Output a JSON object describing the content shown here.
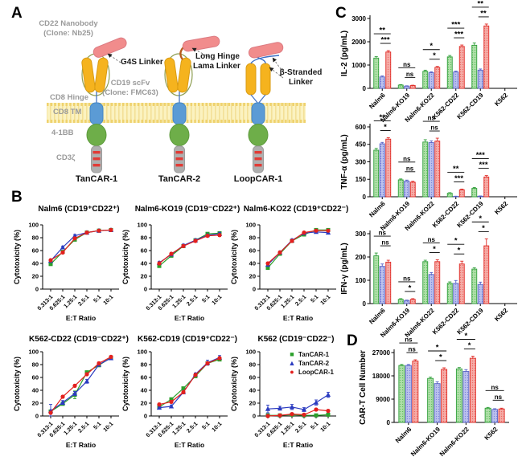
{
  "panels": {
    "a": "A",
    "b": "B",
    "c": "C",
    "d": "D"
  },
  "panelA": {
    "cd22_nanobody_line1": "CD22 Nanobody",
    "cd22_nanobody_line2": "(Clone: Nb25)",
    "g4s_linker": "G4S Linker",
    "cd19_scfv_line1": "CD19 scFv",
    "cd19_scfv_line2": "(Clone: FMC63)",
    "cd8_hinge": "CD8 Hinge",
    "cd8_tm": "CD8 TM",
    "four_1bb": "4-1BB",
    "cd3_zeta": "CD3ζ",
    "long_hinge_line1": "Long Hinge",
    "long_hinge_line2": "Lama Linker",
    "beta_stranded_line1": "β-Stranded",
    "beta_stranded_line2": "Linker",
    "construct_names": [
      "TanCAR-1",
      "TanCAR-2",
      "LoopCAR-1"
    ]
  },
  "series_colors": [
    {
      "name": "TanCAR-1",
      "marker": "square",
      "glyph": "■",
      "line": "#2BA02B",
      "edge": "#2E9E38",
      "fill": "#AFDFA8",
      "dot": "#5FBF5F"
    },
    {
      "name": "TanCAR-2",
      "marker": "triangle",
      "glyph": "▲",
      "line": "#2B3BC0",
      "edge": "#5560C6",
      "fill": "#BBC1ED",
      "dot": "#7A83DB"
    },
    {
      "name": "LoopCAR-1",
      "marker": "circle",
      "glyph": "●",
      "line": "#E3201E",
      "edge": "#E02B26",
      "fill": "#F5ABA6",
      "dot": "#EC6A64"
    }
  ],
  "palette": {
    "nanobody_pink": "#F18C8C",
    "scfv_yellow": "#F5B31E",
    "tm_blue": "#5B9BD5",
    "costim_green": "#6EAE49",
    "cd3_gray": "#AFAFAF",
    "stripe_red": "#E23B36",
    "membrane_yellow": "#F3E097",
    "hinge_blue": "#4472C4",
    "lama_brown": "#B85B1C"
  },
  "chart_data": [
    {
      "id": "b1",
      "type": "line",
      "title": "Nalm6 (CD19⁺CD22⁺)",
      "xlabel": "E:T Ratio",
      "ylabel": "Cytotoxicity (%)",
      "ylim": [
        0,
        100
      ],
      "yticks": [
        0,
        20,
        40,
        60,
        80,
        100
      ],
      "x": [
        "0.313:1",
        "0.625:1",
        "1.25:1",
        "2.5:1",
        "5:1",
        "10:1"
      ],
      "series": [
        {
          "name": "TanCAR-1",
          "values": [
            39,
            58,
            77,
            88,
            91,
            92
          ],
          "err": [
            2,
            2,
            2,
            1,
            1,
            1
          ]
        },
        {
          "name": "TanCAR-2",
          "values": [
            44,
            65,
            83,
            88,
            91,
            92
          ],
          "err": [
            2,
            2,
            2,
            1,
            1,
            1
          ]
        },
        {
          "name": "LoopCAR-1",
          "values": [
            45,
            57,
            79,
            88,
            91,
            92
          ],
          "err": [
            2,
            2,
            2,
            1,
            1,
            1
          ]
        }
      ]
    },
    {
      "id": "b2",
      "type": "line",
      "title": "Nalm6-KO19 (CD19⁻CD22⁺)",
      "xlabel": "E:T Ratio",
      "ylabel": "Cytotoxicity (%)",
      "ylim": [
        0,
        100
      ],
      "yticks": [
        0,
        20,
        40,
        60,
        80,
        100
      ],
      "x": [
        "0.313:1",
        "0.625:1",
        "1.25:1",
        "2.5:1",
        "5:1",
        "10:1"
      ],
      "series": [
        {
          "name": "TanCAR-1",
          "values": [
            36,
            52,
            67,
            76,
            86,
            87
          ],
          "err": [
            2,
            2,
            2,
            2,
            1,
            2
          ]
        },
        {
          "name": "TanCAR-2",
          "values": [
            41,
            54,
            68,
            76,
            84,
            86
          ],
          "err": [
            2,
            2,
            2,
            2,
            1,
            2
          ]
        },
        {
          "name": "LoopCAR-1",
          "values": [
            40,
            55,
            67,
            75,
            83,
            84
          ],
          "err": [
            2,
            2,
            2,
            2,
            1,
            2
          ]
        }
      ]
    },
    {
      "id": "b3",
      "type": "line",
      "title": "Nalm6-KO22 (CD19⁺CD22⁻)",
      "xlabel": "E:T Ratio",
      "ylabel": "Cytotoxicity (%)",
      "ylim": [
        0,
        100
      ],
      "yticks": [
        0,
        20,
        40,
        60,
        80,
        100
      ],
      "x": [
        "0.313:1",
        "0.625:1",
        "1.25:1",
        "2.5:1",
        "5:1",
        "10:1"
      ],
      "series": [
        {
          "name": "TanCAR-1",
          "values": [
            33,
            55,
            75,
            85,
            92,
            92
          ],
          "err": [
            2,
            2,
            2,
            1,
            1,
            1
          ]
        },
        {
          "name": "TanCAR-2",
          "values": [
            38,
            57,
            76,
            87,
            89,
            88
          ],
          "err": [
            2,
            2,
            2,
            1,
            1,
            2
          ]
        },
        {
          "name": "LoopCAR-1",
          "values": [
            40,
            57,
            75,
            88,
            91,
            91
          ],
          "err": [
            2,
            2,
            2,
            1,
            1,
            1
          ]
        }
      ]
    },
    {
      "id": "b4",
      "type": "line",
      "title": "K562-CD22 (CD19⁻CD22⁺)",
      "xlabel": "E:T Ratio",
      "ylabel": "Cytotoxicity (%)",
      "ylim": [
        0,
        100
      ],
      "yticks": [
        0,
        20,
        40,
        60,
        80,
        100
      ],
      "x": [
        "0.313:1",
        "0.625:1",
        "1.25:1",
        "2.5:1",
        "5:1",
        "10:1"
      ],
      "series": [
        {
          "name": "TanCAR-1",
          "values": [
            7,
            19,
            33,
            68,
            79,
            91
          ],
          "err": [
            2,
            2,
            6,
            2,
            2,
            1
          ]
        },
        {
          "name": "TanCAR-2",
          "values": [
            8,
            21,
            35,
            54,
            80,
            90
          ],
          "err": [
            10,
            3,
            3,
            3,
            2,
            1
          ]
        },
        {
          "name": "LoopCAR-1",
          "values": [
            5,
            30,
            47,
            65,
            82,
            92
          ],
          "err": [
            2,
            2,
            2,
            2,
            2,
            1
          ]
        }
      ]
    },
    {
      "id": "b5",
      "type": "line",
      "title": "K562-CD19 (CD19⁺CD22⁻)",
      "xlabel": "E:T Ratio",
      "ylabel": "Cytotoxicity (%)",
      "ylim": [
        0,
        100
      ],
      "yticks": [
        0,
        20,
        40,
        60,
        80,
        100
      ],
      "x": [
        "0.313:1",
        "0.625:1",
        "1.25:1",
        "2.5:1",
        "5:1",
        "10:1"
      ],
      "series": [
        {
          "name": "TanCAR-1",
          "values": [
            14,
            26,
            43,
            62,
            82,
            88
          ],
          "err": [
            3,
            2,
            2,
            2,
            2,
            2
          ]
        },
        {
          "name": "TanCAR-2",
          "values": [
            13,
            15,
            37,
            65,
            83,
            91
          ],
          "err": [
            2,
            2,
            2,
            2,
            4,
            3
          ]
        },
        {
          "name": "LoopCAR-1",
          "values": [
            18,
            22,
            37,
            64,
            82,
            90
          ],
          "err": [
            2,
            2,
            2,
            2,
            2,
            2
          ]
        }
      ]
    },
    {
      "id": "b6",
      "type": "line",
      "title": "K562 (CD19⁻CD22⁻)",
      "xlabel": "E:T Ratio",
      "ylabel": "Cytotoxicity (%)",
      "ylim": [
        0,
        100
      ],
      "yticks": [
        0,
        20,
        40,
        60,
        80,
        100
      ],
      "x": [
        "0.313:1",
        "0.625:1",
        "1.25:1",
        "2.5:1",
        "5:1",
        "10:1"
      ],
      "legend_position": "top-right",
      "series": [
        {
          "name": "TanCAR-1",
          "values": [
            1,
            1,
            2,
            1,
            1,
            2
          ],
          "err": [
            1,
            1,
            1,
            1,
            1,
            1
          ]
        },
        {
          "name": "TanCAR-2",
          "values": [
            11,
            12,
            14,
            10,
            21,
            33
          ],
          "err": [
            6,
            3,
            4,
            3,
            4,
            4
          ]
        },
        {
          "name": "LoopCAR-1",
          "values": [
            0,
            1,
            3,
            2,
            10,
            8
          ],
          "err": [
            1,
            1,
            1,
            1,
            2,
            2
          ]
        }
      ]
    },
    {
      "id": "c1",
      "type": "bar",
      "ylabel": "IL-2 (pg/mL)",
      "ylim": [
        0,
        3000
      ],
      "yticks": [
        0,
        1000,
        2000,
        3000
      ],
      "categories": [
        "Nalm6",
        "Nalm6-KO19",
        "Nalm6-KO22",
        "K562-CD22",
        "K562-CD19",
        "K562"
      ],
      "series": [
        {
          "name": "TanCAR-1",
          "values": [
            1300,
            140,
            730,
            1350,
            1850,
            0
          ],
          "err": [
            60,
            20,
            50,
            60,
            100,
            0
          ]
        },
        {
          "name": "TanCAR-2",
          "values": [
            490,
            95,
            670,
            700,
            780,
            0
          ],
          "err": [
            40,
            15,
            40,
            40,
            50,
            0
          ]
        },
        {
          "name": "LoopCAR-1",
          "values": [
            1560,
            120,
            900,
            1800,
            2680,
            0
          ],
          "err": [
            60,
            15,
            40,
            60,
            80,
            0
          ]
        }
      ],
      "sig": [
        [
          "**",
          "***"
        ],
        [
          "ns",
          "ns"
        ],
        [
          "*",
          "*"
        ],
        [
          "***",
          "***"
        ],
        [
          "**",
          "**"
        ],
        null
      ]
    },
    {
      "id": "c2",
      "type": "bar",
      "ylabel": "TNF-α (pg/mL)",
      "ylim": [
        0,
        600
      ],
      "yticks": [
        0,
        150,
        300,
        450,
        600
      ],
      "categories": [
        "Nalm6",
        "Nalm6-KO19",
        "Nalm6-KO22",
        "K562-CD22",
        "K562-CD19",
        "K562"
      ],
      "series": [
        {
          "name": "TanCAR-1",
          "values": [
            400,
            145,
            470,
            30,
            72,
            0
          ],
          "err": [
            15,
            8,
            20,
            5,
            8,
            0
          ]
        },
        {
          "name": "TanCAR-2",
          "values": [
            455,
            135,
            465,
            3,
            5,
            0
          ],
          "err": [
            12,
            8,
            15,
            2,
            2,
            0
          ]
        },
        {
          "name": "LoopCAR-1",
          "values": [
            495,
            125,
            478,
            60,
            170,
            0
          ],
          "err": [
            12,
            8,
            25,
            6,
            12,
            0
          ]
        }
      ],
      "sig": [
        [
          "**",
          "*"
        ],
        [
          "ns",
          "ns"
        ],
        [
          "ns",
          "ns"
        ],
        [
          "**",
          "***"
        ],
        [
          "***",
          "***"
        ],
        null
      ]
    },
    {
      "id": "c3",
      "type": "bar",
      "ylabel": "IFN-γ (pg/mL)",
      "ylim": [
        0,
        300
      ],
      "yticks": [
        0,
        100,
        200,
        300
      ],
      "categories": [
        "Nalm6",
        "Nalm6-KO19",
        "Nalm6-KO22",
        "K562-CD22",
        "K562-CD19",
        "K562"
      ],
      "series": [
        {
          "name": "TanCAR-1",
          "values": [
            205,
            18,
            180,
            87,
            148,
            0
          ],
          "err": [
            12,
            3,
            6,
            6,
            6,
            0
          ]
        },
        {
          "name": "TanCAR-2",
          "values": [
            160,
            13,
            125,
            87,
            82,
            0
          ],
          "err": [
            10,
            2,
            8,
            12,
            10,
            0
          ]
        },
        {
          "name": "LoopCAR-1",
          "values": [
            178,
            18,
            180,
            170,
            248,
            0
          ],
          "err": [
            8,
            3,
            8,
            12,
            30,
            0
          ]
        }
      ],
      "sig": [
        [
          "ns",
          "ns"
        ],
        [
          "ns",
          "*"
        ],
        [
          "ns",
          "*"
        ],
        [
          "*",
          "*"
        ],
        [
          "*",
          "*"
        ],
        null
      ]
    },
    {
      "id": "d1",
      "type": "bar",
      "ylabel": "CAR-T Cell Number",
      "ylim": [
        0,
        27000
      ],
      "yticks": [
        0,
        9000,
        18000,
        27000
      ],
      "categories": [
        "Nalm6",
        "Nalm6-KO19",
        "Nalm6-KO22",
        "K562"
      ],
      "series": [
        {
          "name": "TanCAR-1",
          "values": [
            22000,
            17000,
            20700,
            5500
          ],
          "err": [
            400,
            500,
            500,
            300
          ]
        },
        {
          "name": "TanCAR-2",
          "values": [
            22000,
            15000,
            19700,
            5000
          ],
          "err": [
            400,
            700,
            700,
            300
          ]
        },
        {
          "name": "LoopCAR-1",
          "values": [
            23700,
            20500,
            24800,
            5200
          ],
          "err": [
            500,
            600,
            800,
            300
          ]
        }
      ],
      "sig": [
        [
          "ns",
          "ns"
        ],
        [
          "*",
          "*"
        ],
        [
          "*",
          "*"
        ],
        [
          "ns",
          "ns"
        ]
      ]
    }
  ]
}
